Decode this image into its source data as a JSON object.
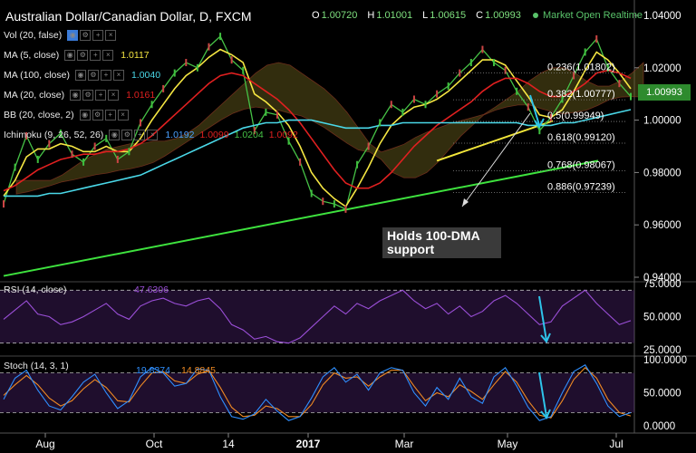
{
  "header": {
    "title": "Australian Dollar/Canadian Dollar, D, FXCM",
    "ohlc": [
      {
        "k": "O",
        "v": "1.00720"
      },
      {
        "k": "H",
        "v": "1.01001"
      },
      {
        "k": "L",
        "v": "1.00615"
      },
      {
        "k": "C",
        "v": "1.00993"
      }
    ],
    "status": "Market Open Realtime"
  },
  "indicators": [
    {
      "label": "Vol (20, false)",
      "value": "",
      "color": "#e8e8e8"
    },
    {
      "label": "MA (5, close)",
      "value": "1.0117",
      "color": "#f5e642"
    },
    {
      "label": "MA (100, close)",
      "value": "1.0040",
      "color": "#4ad8e8"
    },
    {
      "label": "MA (20, close)",
      "value": "1.0161",
      "color": "#e02020"
    },
    {
      "label": "BB (20, close, 2)",
      "value": "",
      "color": "#e8e8e8"
    },
    {
      "label": "Ichimoku (9, 26, 52, 26)",
      "values": [
        "1.0192",
        "1.0099",
        "1.0204",
        "1.0092"
      ],
      "color": "#4aa0ff"
    }
  ],
  "annotation": {
    "line1": "Holds 100-DMA",
    "line2": "support"
  },
  "current_price": "1.00993",
  "chart_data": {
    "type": "line",
    "symbol": "AUDCAD",
    "timeframe": "D",
    "price_axis": {
      "range": [
        0.94,
        1.04
      ],
      "ticks": [
        "1.04000",
        "1.02000",
        "1.00000",
        "0.98000",
        "0.96000",
        "0.94000"
      ]
    },
    "x_ticks": [
      "Aug",
      "Oct",
      "14",
      "2017",
      "Mar",
      "May",
      "Jul"
    ],
    "series": [
      {
        "name": "Price",
        "color": "#46c246",
        "values": [
          0.968,
          0.982,
          0.994,
          0.985,
          0.991,
          0.995,
          0.987,
          0.984,
          0.99,
          0.993,
          0.985,
          0.988,
          0.999,
          1.006,
          1.012,
          1.018,
          1.022,
          1.02,
          1.028,
          1.032,
          1.023,
          1.019,
          0.996,
          1.003,
          1.002,
          0.992,
          0.984,
          0.972,
          0.969,
          0.968,
          0.966,
          0.983,
          0.99,
          0.999,
          1.006,
          1.003,
          1.008,
          1.006,
          1.01,
          1.013,
          1.018,
          1.022,
          1.027,
          1.022,
          1.019,
          1.011,
          1.005,
          0.996,
          1.001,
          1.008,
          1.017,
          1.026,
          1.031,
          1.02,
          1.014,
          1.009
        ]
      },
      {
        "name": "MA (5, close)",
        "color": "#f5e642",
        "values": [
          0.971,
          0.977,
          0.986,
          0.989,
          0.989,
          0.991,
          0.99,
          0.988,
          0.988,
          0.99,
          0.988,
          0.988,
          0.993,
          1.0,
          1.006,
          1.012,
          1.017,
          1.02,
          1.024,
          1.027,
          1.025,
          1.022,
          1.01,
          1.007,
          1.003,
          0.998,
          0.99,
          0.98,
          0.974,
          0.97,
          0.967,
          0.974,
          0.982,
          0.991,
          0.998,
          1.002,
          1.005,
          1.006,
          1.008,
          1.011,
          1.015,
          1.019,
          1.023,
          1.023,
          1.021,
          1.015,
          1.009,
          1.002,
          1.001,
          1.004,
          1.011,
          1.019,
          1.026,
          1.023,
          1.018,
          1.012
        ]
      },
      {
        "name": "MA (20, close)",
        "color": "#e02020",
        "values": [
          0.973,
          0.975,
          0.978,
          0.981,
          0.983,
          0.985,
          0.986,
          0.987,
          0.987,
          0.988,
          0.988,
          0.989,
          0.991,
          0.994,
          0.998,
          1.002,
          1.006,
          1.01,
          1.014,
          1.017,
          1.018,
          1.017,
          1.014,
          1.011,
          1.008,
          1.004,
          0.999,
          0.993,
          0.987,
          0.981,
          0.976,
          0.974,
          0.974,
          0.976,
          0.98,
          0.985,
          0.99,
          0.994,
          0.998,
          1.001,
          1.004,
          1.007,
          1.011,
          1.014,
          1.016,
          1.016,
          1.014,
          1.011,
          1.009,
          1.009,
          1.011,
          1.014,
          1.018,
          1.019,
          1.018,
          1.016
        ]
      },
      {
        "name": "MA (100, close)",
        "color": "#4ad8e8",
        "values": [
          0.971,
          0.971,
          0.971,
          0.971,
          0.972,
          0.972,
          0.973,
          0.974,
          0.975,
          0.976,
          0.977,
          0.978,
          0.979,
          0.981,
          0.983,
          0.985,
          0.987,
          0.989,
          0.991,
          0.993,
          0.995,
          0.997,
          0.998,
          0.999,
          0.999,
          1.0,
          1.0,
          1.0,
          0.999,
          0.998,
          0.997,
          0.997,
          0.997,
          0.998,
          0.998,
          0.999,
          0.999,
          0.999,
          0.999,
          0.999,
          0.999,
          0.999,
          0.999,
          0.999,
          0.999,
          0.999,
          0.998,
          0.998,
          0.998,
          0.999,
          0.999,
          1.0,
          1.001,
          1.002,
          1.003,
          1.004
        ]
      }
    ],
    "fibonacci": [
      {
        "label": "0.236(1.01802)",
        "value": 1.01802
      },
      {
        "label": "0.382(1.00777)",
        "value": 1.00777
      },
      {
        "label": "0.5(0.99949)",
        "value": 0.99949
      },
      {
        "label": "0.618(0.99120)",
        "value": 0.9912
      },
      {
        "label": "0.768(0.98067)",
        "value": 0.98067
      },
      {
        "label": "0.886(0.97239)",
        "value": 0.97239
      }
    ],
    "rsi": {
      "label": "RSI (14, close)",
      "value": "47.6306",
      "range": [
        25,
        75
      ],
      "ticks": [
        "75.0000",
        "50.0000",
        "25.0000"
      ],
      "bands": [
        70,
        30
      ],
      "values": [
        48,
        55,
        62,
        52,
        50,
        44,
        46,
        50,
        55,
        60,
        52,
        48,
        58,
        62,
        64,
        60,
        58,
        62,
        64,
        56,
        44,
        40,
        33,
        35,
        31,
        30,
        34,
        42,
        50,
        58,
        52,
        60,
        56,
        62,
        66,
        70,
        62,
        56,
        60,
        52,
        58,
        50,
        54,
        62,
        66,
        60,
        52,
        44,
        46,
        58,
        64,
        70,
        60,
        52,
        44,
        47
      ]
    },
    "stoch": {
      "label": "Stoch (14, 3, 1)",
      "values_text": [
        "19.8374",
        "14.8845"
      ],
      "range": [
        0,
        100
      ],
      "ticks": [
        "100.0000",
        "50.0000",
        "0.0000"
      ],
      "bands": [
        80,
        20
      ],
      "k": [
        40,
        72,
        84,
        54,
        30,
        24,
        44,
        66,
        78,
        50,
        26,
        38,
        74,
        88,
        80,
        60,
        64,
        86,
        84,
        44,
        14,
        10,
        18,
        40,
        22,
        8,
        14,
        42,
        74,
        88,
        66,
        78,
        54,
        80,
        88,
        84,
        50,
        30,
        58,
        40,
        72,
        44,
        34,
        74,
        88,
        60,
        28,
        8,
        14,
        50,
        82,
        92,
        64,
        30,
        14,
        20
      ],
      "d": [
        46,
        62,
        76,
        62,
        42,
        30,
        38,
        56,
        70,
        58,
        38,
        36,
        60,
        80,
        82,
        68,
        64,
        78,
        84,
        58,
        28,
        14,
        16,
        30,
        26,
        14,
        14,
        32,
        62,
        80,
        72,
        74,
        60,
        74,
        84,
        84,
        60,
        38,
        50,
        44,
        62,
        52,
        40,
        62,
        82,
        66,
        38,
        16,
        12,
        38,
        70,
        88,
        72,
        40,
        20,
        15
      ]
    }
  }
}
